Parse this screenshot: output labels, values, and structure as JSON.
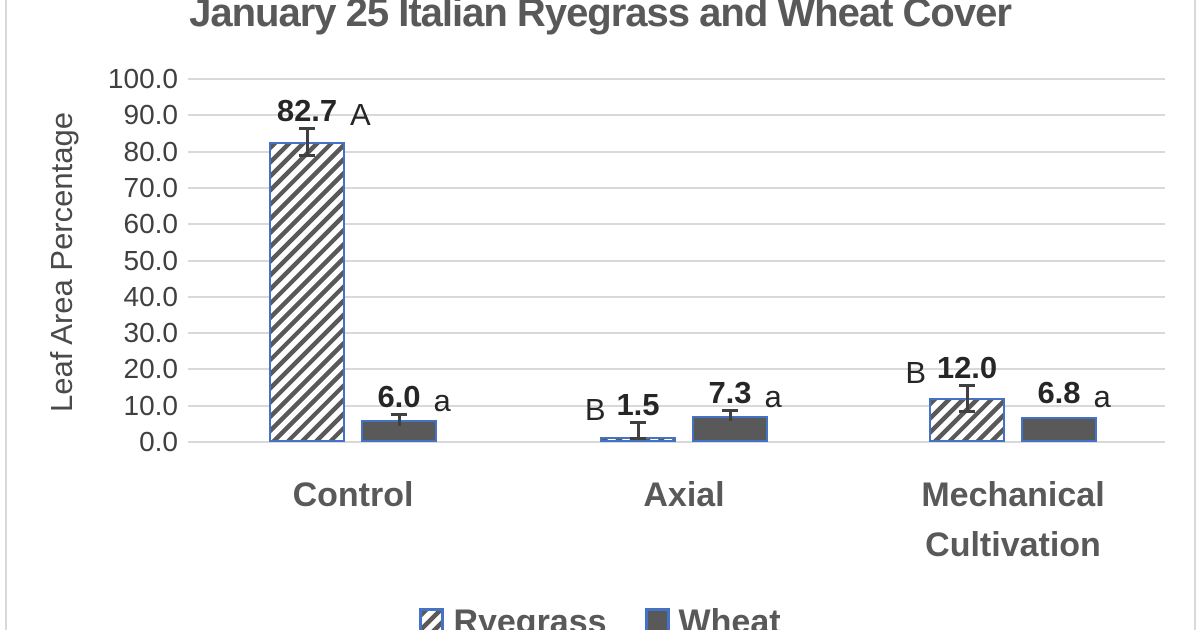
{
  "chart_data": {
    "type": "bar",
    "title": "January 25 Italian Ryegrass and Wheat Cover",
    "ylabel": "Leaf Area Percentage",
    "categories": [
      "Control",
      "Axial",
      "Mechanical Cultivation"
    ],
    "series": [
      {
        "name": "Ryegrass",
        "style": "hatched",
        "values": [
          82.7,
          1.5,
          12.0
        ],
        "value_labels": [
          "82.7",
          "1.5",
          "12.0"
        ],
        "errors": [
          3.8,
          4.0,
          3.7
        ],
        "sig_letters": [
          "A",
          "B",
          "B"
        ],
        "letter_side": [
          "right",
          "left",
          "left"
        ]
      },
      {
        "name": "Wheat",
        "style": "solid",
        "values": [
          6.0,
          7.3,
          6.8
        ],
        "value_labels": [
          "6.0",
          "7.3",
          "6.8"
        ],
        "errors": [
          1.7,
          1.5,
          0
        ],
        "sig_letters": [
          "a",
          "a",
          "a"
        ],
        "letter_side": [
          "right",
          "right",
          "right"
        ]
      }
    ],
    "ylim": [
      0,
      100
    ],
    "ytick_step": 10,
    "ytick_labels": [
      "100.0",
      "90.0",
      "80.0",
      "70.0",
      "60.0",
      "50.0",
      "40.0",
      "30.0",
      "20.0",
      "10.0",
      "0.0"
    ],
    "grid": true,
    "legend_position": "bottom",
    "colors": {
      "bar_border": "#4472C4",
      "solid_fill": "#595959",
      "hatch_stroke": "#595959",
      "gridline": "#D9D9D9",
      "axis_text": "#404040",
      "category_text": "#595959",
      "title_text": "#595959",
      "data_label": "#262626",
      "error_bar": "#404040"
    }
  }
}
